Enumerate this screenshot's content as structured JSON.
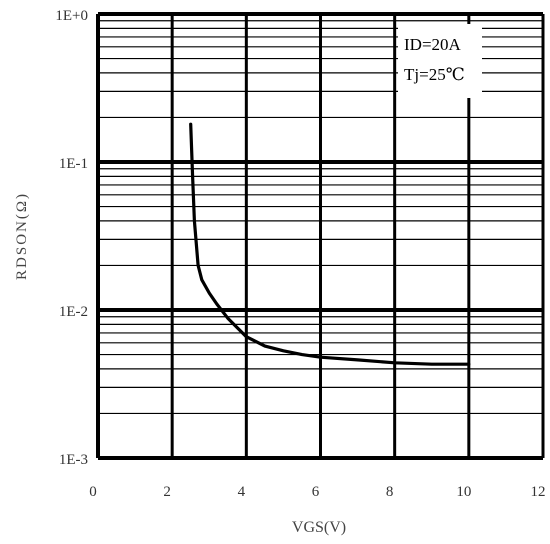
{
  "chart_data": {
    "type": "line",
    "xlabel": "VGS(V)",
    "ylabel": "RDSON(Ω)",
    "xlim": [
      0,
      12
    ],
    "ylim": [
      0.001,
      1
    ],
    "yscale": "log",
    "grid": true,
    "x_ticks": [
      "0",
      "2",
      "4",
      "6",
      "8",
      "10",
      "12"
    ],
    "y_ticks": [
      "1E-3",
      "1E-2",
      "1E-1",
      "1E+0"
    ],
    "annotations": [
      "ID=20A",
      "Tj=25℃"
    ],
    "series": [
      {
        "x": [
          2.5,
          2.55,
          2.6,
          2.7,
          2.8,
          3.0,
          3.2,
          3.5,
          4.0,
          4.5,
          5.0,
          5.5,
          6.0,
          7.0,
          8.0,
          9.0,
          10.0
        ],
        "y": [
          0.18,
          0.08,
          0.04,
          0.02,
          0.016,
          0.013,
          0.011,
          0.0088,
          0.0066,
          0.0057,
          0.0053,
          0.005,
          0.0048,
          0.0046,
          0.0044,
          0.0043,
          0.0043
        ]
      }
    ]
  }
}
